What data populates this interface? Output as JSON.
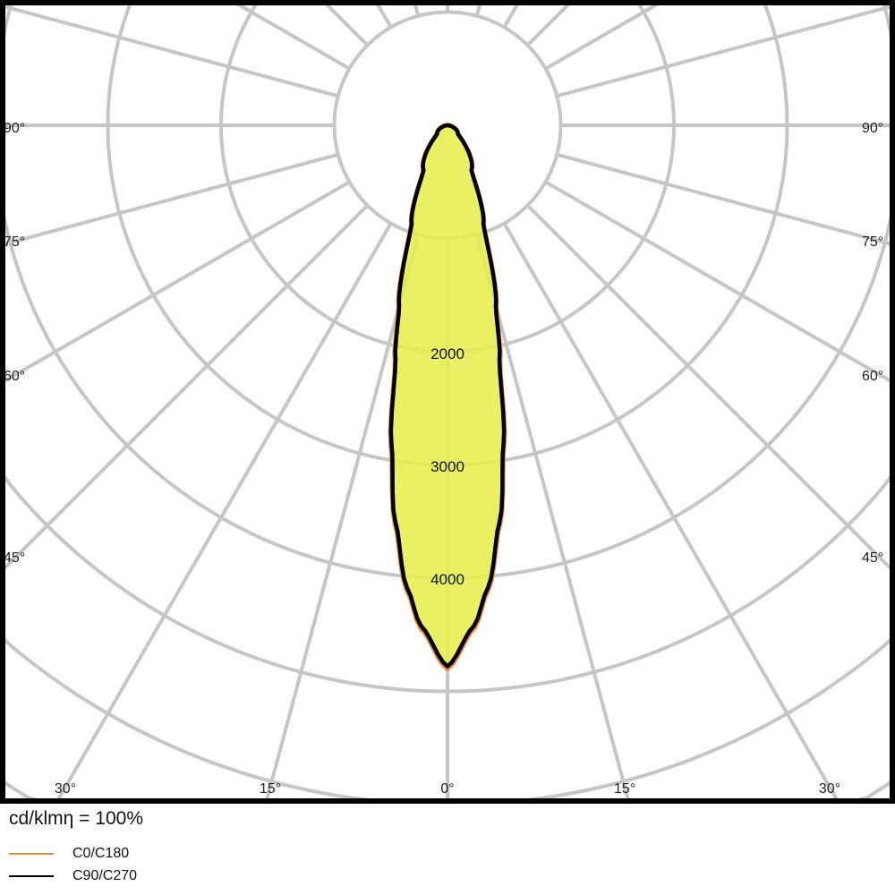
{
  "chart_data": {
    "type": "polar",
    "unit_label": "cd/klmη = 100%",
    "radial_ticks": [
      1000,
      2000,
      3000,
      4000,
      5000,
      6000,
      7000,
      8000
    ],
    "radial_tick_labels": [
      "2000",
      "3000",
      "4000"
    ],
    "angle_labels_left": [
      "90°",
      "75°",
      "60°",
      "45°"
    ],
    "angle_labels_bottom": [
      "30°",
      "15°",
      "0°",
      "15°",
      "30°"
    ],
    "angle_labels_right": [
      "90°",
      "75°",
      "60°",
      "45°"
    ],
    "grid": true,
    "angular_grid_step_deg": 15,
    "fill_color": "#e6ee4e",
    "series": [
      {
        "name": "C0/C180",
        "color": "#f08a3c",
        "angles_deg": [
          0,
          3,
          5,
          7.5,
          10,
          12.5,
          15,
          20,
          28,
          50,
          90
        ],
        "values": [
          4800,
          4450,
          4120,
          3550,
          2870,
          2140,
          1660,
          930,
          450,
          120,
          0
        ]
      },
      {
        "name": "C90/C270",
        "color": "#000000",
        "angles_deg": [
          0,
          3,
          5,
          7.5,
          10,
          12.5,
          15,
          20,
          28,
          50,
          90
        ],
        "values": [
          4780,
          4430,
          4100,
          3530,
          2850,
          2120,
          1650,
          925,
          450,
          120,
          0
        ]
      }
    ]
  }
}
